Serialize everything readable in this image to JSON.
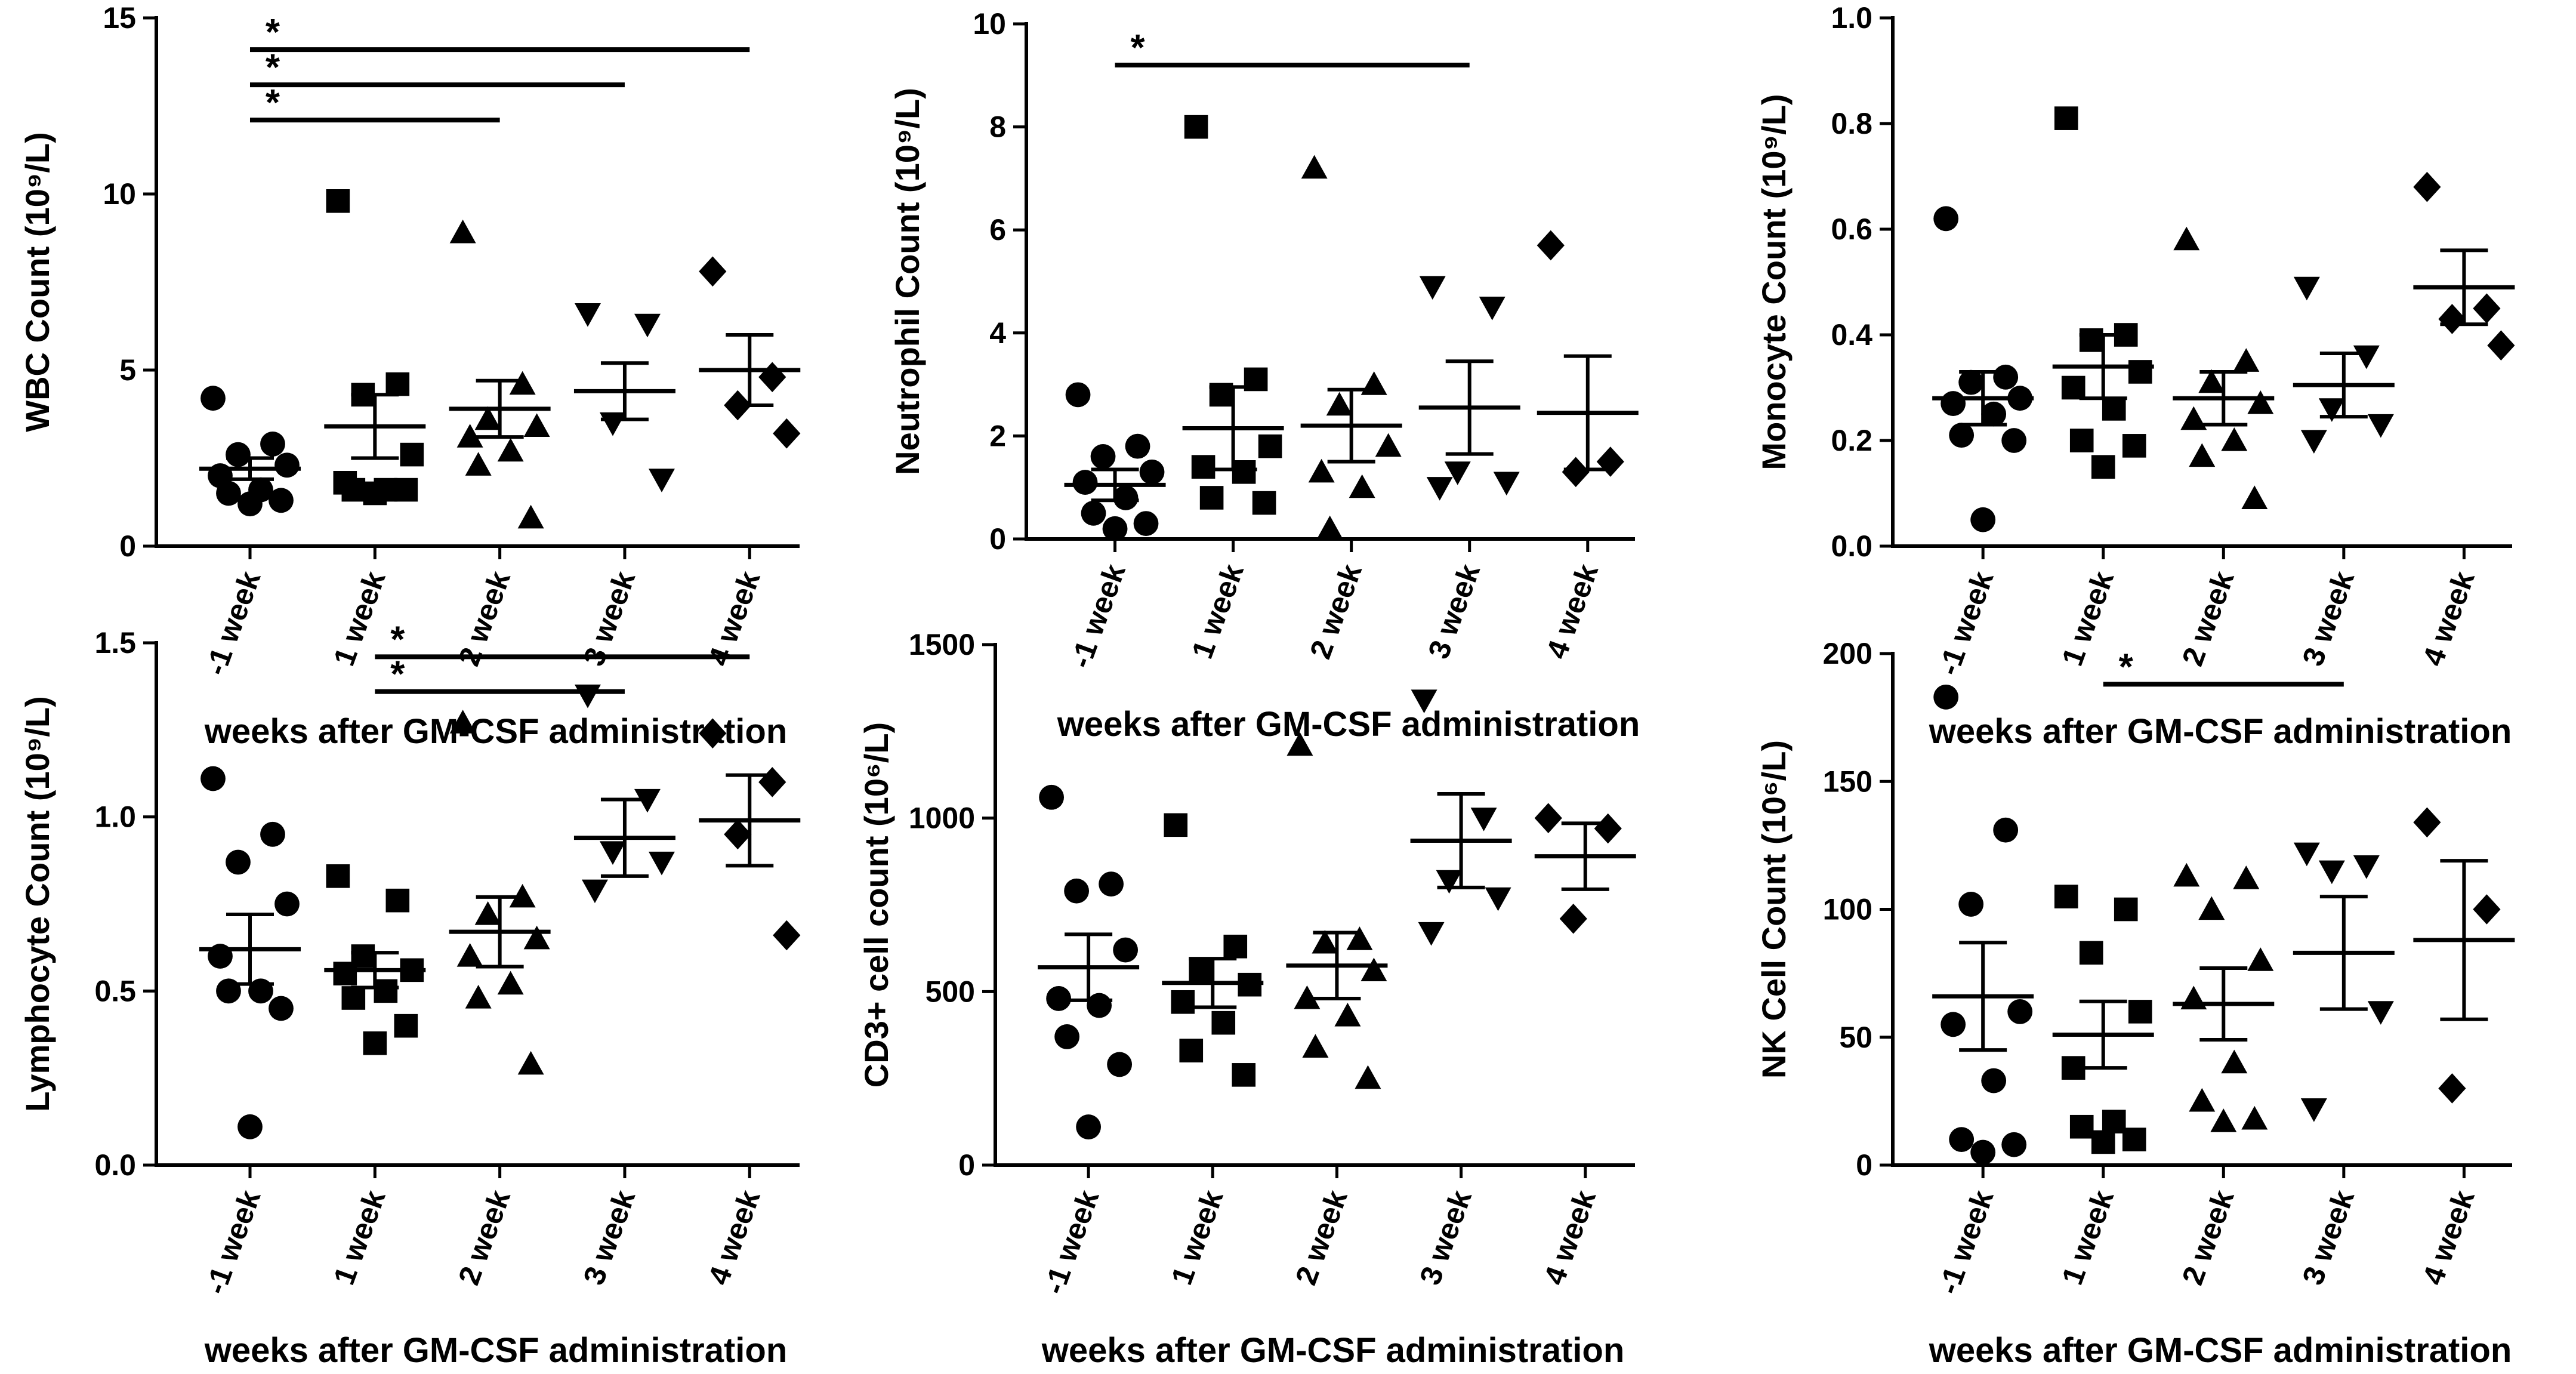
{
  "x_axis_label": "weeks after GM-CSF administration",
  "colors": {
    "ink": "#000000",
    "background": "#ffffff"
  },
  "chart_data": [
    {
      "type": "scatter",
      "ylabel": "WBC Count (10⁹/L)",
      "ylim": [
        0,
        15
      ],
      "yticks": [
        0,
        5,
        10,
        15
      ],
      "ytick_labels": [
        "0",
        "5",
        "10",
        "15"
      ],
      "categories": [
        "-1 week",
        "1 week",
        "2 week",
        "3 week",
        "4 week"
      ],
      "markers": [
        "circle",
        "square",
        "triangle-up",
        "triangle-down",
        "diamond"
      ],
      "points": [
        [
          4.2,
          2.9,
          2.6,
          2.3,
          2.0,
          1.6,
          1.5,
          1.3,
          1.2
        ],
        [
          9.8,
          4.6,
          4.3,
          2.6,
          1.8,
          1.6,
          1.6,
          1.6,
          1.5
        ],
        [
          8.9,
          4.6,
          3.6,
          3.4,
          3.1,
          2.7,
          2.3,
          0.8
        ],
        [
          6.6,
          6.3,
          3.5,
          1.9
        ],
        [
          7.8,
          4.8,
          4.0,
          3.2
        ]
      ],
      "mean": [
        2.2,
        3.4,
        3.9,
        4.4,
        5.0
      ],
      "sem": [
        0.3,
        0.9,
        0.8,
        0.8,
        1.0
      ],
      "significance": [
        {
          "from": "-1 week",
          "to": "4 week",
          "label": "*",
          "y": 14.1
        },
        {
          "from": "-1 week",
          "to": "3 week",
          "label": "*",
          "y": 13.1
        },
        {
          "from": "-1 week",
          "to": "2 week",
          "label": "*",
          "y": 12.1
        }
      ]
    },
    {
      "type": "scatter",
      "ylabel": "Neutrophil Count (10⁹/L)",
      "ylim": [
        0,
        10
      ],
      "yticks": [
        0,
        2,
        4,
        6,
        8,
        10
      ],
      "ytick_labels": [
        "0",
        "2",
        "4",
        "6",
        "8",
        "10"
      ],
      "categories": [
        "-1 week",
        "1 week",
        "2 week",
        "3 week",
        "4 week"
      ],
      "markers": [
        "circle",
        "square",
        "triangle-up",
        "triangle-down",
        "diamond"
      ],
      "points": [
        [
          2.8,
          1.8,
          1.6,
          1.3,
          1.1,
          0.8,
          0.5,
          0.3,
          0.2
        ],
        [
          8.0,
          3.1,
          2.8,
          1.8,
          1.4,
          1.3,
          0.8,
          0.7
        ],
        [
          7.2,
          3.0,
          2.6,
          1.8,
          1.3,
          1.0,
          0.2
        ],
        [
          4.9,
          4.5,
          1.3,
          1.1,
          1.0
        ],
        [
          5.7,
          1.5,
          1.3
        ]
      ],
      "mean": [
        1.05,
        2.15,
        2.2,
        2.55,
        2.45
      ],
      "sem": [
        0.3,
        0.8,
        0.7,
        0.9,
        1.1
      ],
      "significance": [
        {
          "from": "-1 week",
          "to": "3 week",
          "label": "*",
          "y": 9.2
        }
      ]
    },
    {
      "type": "scatter",
      "ylabel": "Monocyte Count (10⁹/L)",
      "ylim": [
        0,
        1.0
      ],
      "yticks": [
        0,
        0.2,
        0.4,
        0.6,
        0.8,
        1.0
      ],
      "ytick_labels": [
        "0.0",
        "0.2",
        "0.4",
        "0.6",
        "0.8",
        "1.0"
      ],
      "categories": [
        "-1 week",
        "1 week",
        "2 week",
        "3 week",
        "4 week"
      ],
      "markers": [
        "circle",
        "square",
        "triangle-up",
        "triangle-down",
        "diamond"
      ],
      "points": [
        [
          0.62,
          0.32,
          0.31,
          0.28,
          0.27,
          0.25,
          0.21,
          0.2,
          0.05
        ],
        [
          0.81,
          0.4,
          0.39,
          0.33,
          0.3,
          0.26,
          0.2,
          0.19,
          0.15
        ],
        [
          0.58,
          0.35,
          0.31,
          0.27,
          0.24,
          0.2,
          0.17,
          0.09
        ],
        [
          0.49,
          0.36,
          0.26,
          0.23,
          0.2
        ],
        [
          0.68,
          0.45,
          0.43,
          0.38
        ]
      ],
      "mean": [
        0.28,
        0.34,
        0.28,
        0.305,
        0.49
      ],
      "sem": [
        0.05,
        0.06,
        0.05,
        0.06,
        0.07
      ],
      "significance": []
    },
    {
      "type": "scatter",
      "ylabel": "Lymphocyte Count (10⁹/L)",
      "ylim": [
        0,
        1.5
      ],
      "yticks": [
        0,
        0.5,
        1.0,
        1.5
      ],
      "ytick_labels": [
        "0.0",
        "0.5",
        "1.0",
        "1.5"
      ],
      "categories": [
        "-1 week",
        "1 week",
        "2 week",
        "3 week",
        "4 week"
      ],
      "markers": [
        "circle",
        "square",
        "triangle-up",
        "triangle-down",
        "diamond"
      ],
      "points": [
        [
          1.11,
          0.95,
          0.87,
          0.75,
          0.6,
          0.5,
          0.5,
          0.45,
          0.11
        ],
        [
          0.83,
          0.76,
          0.6,
          0.56,
          0.55,
          0.5,
          0.48,
          0.4,
          0.35
        ],
        [
          1.27,
          0.77,
          0.72,
          0.65,
          0.6,
          0.52,
          0.48,
          0.29
        ],
        [
          1.35,
          1.05,
          0.9,
          0.87,
          0.79
        ],
        [
          1.24,
          1.1,
          0.95,
          0.66
        ]
      ],
      "mean": [
        0.62,
        0.56,
        0.67,
        0.94,
        0.99
      ],
      "sem": [
        0.1,
        0.05,
        0.1,
        0.11,
        0.13
      ],
      "significance": [
        {
          "from": "1 week",
          "to": "4 week",
          "label": "*",
          "y": 1.46
        },
        {
          "from": "1 week",
          "to": "3 week",
          "label": "*",
          "y": 1.36
        }
      ]
    },
    {
      "type": "scatter",
      "ylabel": "CD3+ cell count (10⁶/L)",
      "ylim": [
        0,
        1500
      ],
      "yticks": [
        0,
        500,
        1000,
        1500
      ],
      "ytick_labels": [
        "0",
        "500",
        "1000",
        "1500"
      ],
      "categories": [
        "-1 week",
        "1 week",
        "2 week",
        "3 week",
        "4 week"
      ],
      "markers": [
        "circle",
        "square",
        "triangle-up",
        "triangle-down",
        "diamond"
      ],
      "points": [
        [
          1060,
          810,
          790,
          620,
          480,
          460,
          370,
          290,
          110
        ],
        [
          980,
          630,
          560,
          520,
          470,
          410,
          330,
          260
        ],
        [
          1210,
          650,
          640,
          560,
          480,
          430,
          340,
          250
        ],
        [
          1340,
          1000,
          820,
          770,
          670
        ],
        [
          1000,
          970,
          710
        ]
      ],
      "mean": [
        570,
        525,
        575,
        935,
        890
      ],
      "sem": [
        95,
        70,
        95,
        135,
        95
      ],
      "significance": []
    },
    {
      "type": "scatter",
      "ylabel": "NK Cell Count (10⁶/L)",
      "ylim": [
        0,
        200
      ],
      "yticks": [
        0,
        50,
        100,
        150,
        200
      ],
      "ytick_labels": [
        "0",
        "50",
        "100",
        "150",
        "200"
      ],
      "categories": [
        "-1 week",
        "1 week",
        "2 week",
        "3 week",
        "4 week"
      ],
      "markers": [
        "circle",
        "square",
        "triangle-up",
        "triangle-down",
        "diamond"
      ],
      "points": [
        [
          183,
          131,
          102,
          60,
          55,
          33,
          10,
          8,
          5
        ],
        [
          105,
          100,
          83,
          60,
          38,
          17,
          15,
          10,
          9
        ],
        [
          113,
          112,
          100,
          80,
          65,
          40,
          25,
          18,
          17
        ],
        [
          122,
          117,
          115,
          60,
          22
        ],
        [
          134,
          100,
          30
        ]
      ],
      "mean": [
        66,
        51,
        63,
        83,
        88
      ],
      "sem": [
        21,
        13,
        14,
        22,
        31
      ],
      "significance": [
        {
          "from": "1 week",
          "to": "3 week",
          "label": "*",
          "y": 188
        }
      ]
    }
  ]
}
